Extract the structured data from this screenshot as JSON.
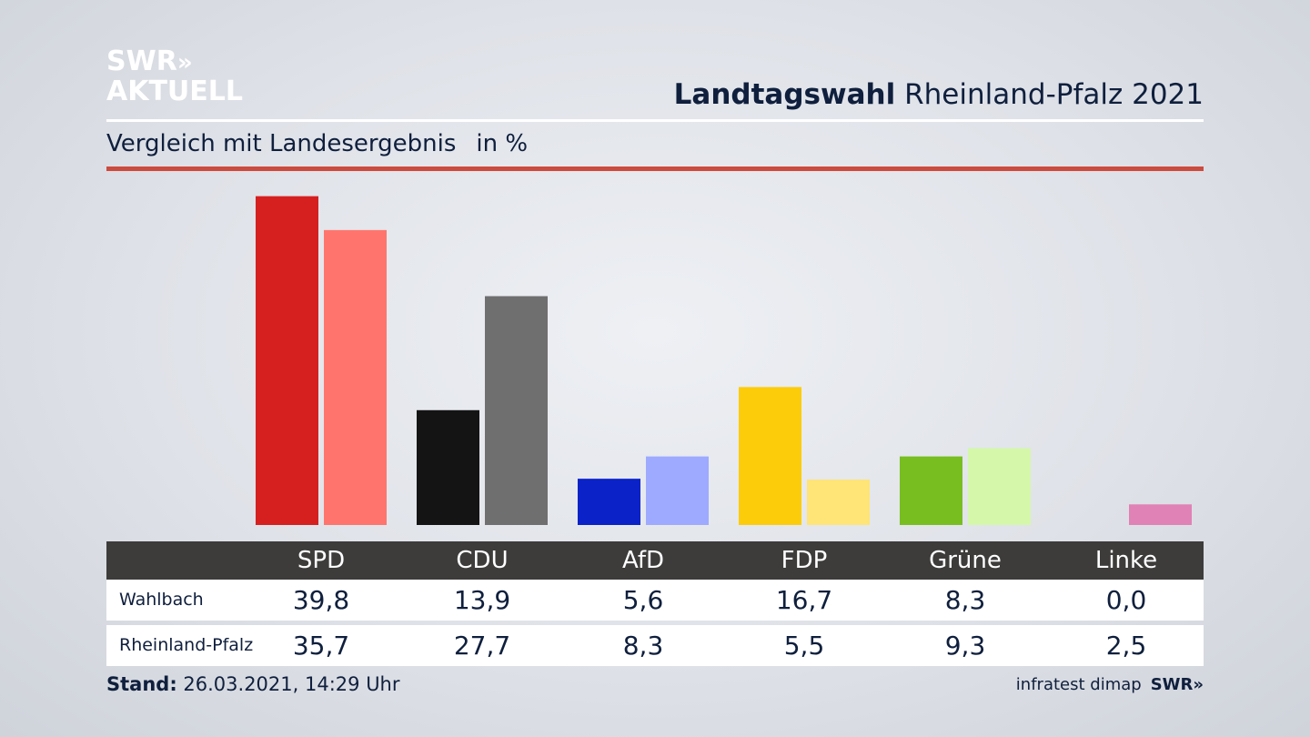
{
  "logo": {
    "line1": "SWR",
    "arrows": "»",
    "line2": "AKTUELL"
  },
  "header": {
    "title_bold": "Landtagswahl",
    "title_rest": "Rheinland-Pfalz 2021"
  },
  "subheader": {
    "subtitle": "Vergleich mit Landesergebnis",
    "unit": "in %"
  },
  "colors": {
    "accent_rule": "#cc4b3f",
    "table_header": "#3d3c3b",
    "wahlbach": [
      "#d62020",
      "#141414",
      "#0a22c8",
      "#fccc0a",
      "#78be20",
      "#e082b6"
    ],
    "rlp": [
      "#ff756d",
      "#706f6f",
      "#9daaff",
      "#ffe477",
      "#d4f7aa",
      "#e082b6"
    ]
  },
  "chart_data": {
    "type": "bar",
    "categories": [
      "SPD",
      "CDU",
      "AfD",
      "FDP",
      "Grüne",
      "Linke"
    ],
    "series": [
      {
        "name": "Wahlbach",
        "values": [
          39.8,
          13.9,
          5.6,
          16.7,
          8.3,
          0.0
        ]
      },
      {
        "name": "Rheinland-Pfalz",
        "values": [
          35.7,
          27.7,
          8.3,
          5.5,
          9.3,
          2.5
        ]
      }
    ],
    "ylim": [
      0,
      40
    ],
    "grid": false
  },
  "table": {
    "rows": [
      {
        "label": "Wahlbach",
        "values": [
          "39,8",
          "13,9",
          "5,6",
          "16,7",
          "8,3",
          "0,0"
        ]
      },
      {
        "label": "Rheinland-Pfalz",
        "values": [
          "35,7",
          "27,7",
          "8,3",
          "5,5",
          "9,3",
          "2,5"
        ]
      }
    ]
  },
  "footer": {
    "stand_label": "Stand:",
    "stand_value": "26.03.2021, 14:29 Uhr",
    "source": "infratest dimap",
    "brand": "SWR»"
  }
}
